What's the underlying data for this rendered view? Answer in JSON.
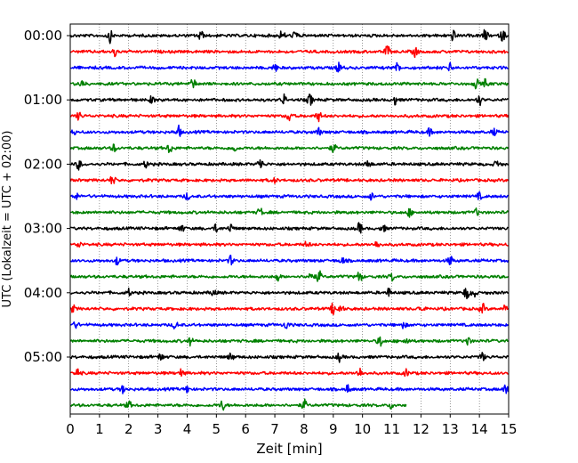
{
  "chart_data": {
    "type": "line",
    "xlabel": "Zeit  [min]",
    "ylabel": "UTC (Lokalzeit = UTC + 02:00)",
    "xlim": [
      0,
      15
    ],
    "x_ticks": [
      0,
      1,
      2,
      3,
      4,
      5,
      6,
      7,
      8,
      9,
      10,
      11,
      12,
      13,
      14,
      15
    ],
    "y_tick_labels": [
      "00:00",
      "01:00",
      "02:00",
      "03:00",
      "04:00",
      "05:00"
    ],
    "grid": "vertical dotted",
    "trace_interval_minutes": 15,
    "trace_colors_cycle": [
      "#000000",
      "#ff0000",
      "#0000ff",
      "#008000"
    ],
    "traces": [
      {
        "start": "00:00",
        "color": "#000000",
        "end_min": 15,
        "events": [
          [
            1.35,
            1.0
          ],
          [
            4.45,
            1.0
          ],
          [
            7.25,
            0.8
          ],
          [
            7.7,
            0.8
          ],
          [
            13.1,
            0.8
          ],
          [
            14.2,
            1.0
          ],
          [
            14.8,
            0.9
          ]
        ]
      },
      {
        "start": "00:15",
        "color": "#ff0000",
        "end_min": 15,
        "events": [
          [
            1.55,
            0.8
          ],
          [
            10.85,
            0.9
          ],
          [
            11.8,
            0.8
          ]
        ]
      },
      {
        "start": "00:30",
        "color": "#0000ff",
        "end_min": 15,
        "events": [
          [
            7.0,
            0.6
          ],
          [
            9.2,
            0.9
          ],
          [
            11.2,
            0.7
          ],
          [
            13.0,
            0.6
          ]
        ]
      },
      {
        "start": "00:45",
        "color": "#008000",
        "end_min": 15,
        "events": [
          [
            0.4,
            0.6
          ],
          [
            4.2,
            0.8
          ],
          [
            13.9,
            0.7
          ],
          [
            14.2,
            0.6
          ]
        ]
      },
      {
        "start": "01:00",
        "color": "#000000",
        "end_min": 15,
        "events": [
          [
            2.8,
            0.6
          ],
          [
            7.3,
            0.8
          ],
          [
            8.2,
            0.9
          ],
          [
            11.1,
            0.7
          ],
          [
            14.0,
            0.8
          ]
        ]
      },
      {
        "start": "01:15",
        "color": "#ff0000",
        "end_min": 15,
        "events": [
          [
            0.3,
            0.6
          ],
          [
            7.5,
            0.9
          ],
          [
            8.5,
            0.8
          ]
        ]
      },
      {
        "start": "01:30",
        "color": "#0000ff",
        "end_min": 15,
        "events": [
          [
            0.1,
            0.5
          ],
          [
            3.7,
            0.9
          ],
          [
            8.5,
            0.6
          ],
          [
            12.3,
            0.5
          ],
          [
            14.5,
            0.5
          ]
        ]
      },
      {
        "start": "01:45",
        "color": "#008000",
        "end_min": 15,
        "events": [
          [
            1.5,
            0.6
          ],
          [
            3.4,
            0.8
          ],
          [
            5.6,
            0.6
          ],
          [
            9.0,
            0.7
          ]
        ]
      },
      {
        "start": "02:00",
        "color": "#000000",
        "end_min": 15,
        "events": [
          [
            0.3,
            0.8
          ],
          [
            2.6,
            0.5
          ],
          [
            6.5,
            1.0
          ],
          [
            10.2,
            0.7
          ],
          [
            14.6,
            0.6
          ]
        ]
      },
      {
        "start": "02:15",
        "color": "#ff0000",
        "end_min": 15,
        "events": [
          [
            1.45,
            0.8
          ],
          [
            7.0,
            0.4
          ]
        ]
      },
      {
        "start": "02:30",
        "color": "#0000ff",
        "end_min": 15,
        "events": [
          [
            0.2,
            0.5
          ],
          [
            4.0,
            0.5
          ],
          [
            10.3,
            0.5
          ],
          [
            14.0,
            0.5
          ]
        ]
      },
      {
        "start": "02:45",
        "color": "#008000",
        "end_min": 15,
        "events": [
          [
            6.5,
            0.7
          ],
          [
            11.6,
            0.6
          ],
          [
            13.9,
            0.5
          ]
        ]
      },
      {
        "start": "03:00",
        "color": "#000000",
        "end_min": 15,
        "events": [
          [
            3.8,
            0.6
          ],
          [
            5.0,
            0.6
          ],
          [
            5.5,
            0.7
          ],
          [
            9.9,
            0.8
          ],
          [
            10.7,
            0.6
          ]
        ]
      },
      {
        "start": "03:15",
        "color": "#ff0000",
        "end_min": 15,
        "events": [
          [
            0.3,
            0.5
          ],
          [
            8.1,
            0.5
          ],
          [
            10.5,
            0.6
          ]
        ]
      },
      {
        "start": "03:30",
        "color": "#0000ff",
        "end_min": 15,
        "events": [
          [
            1.6,
            0.6
          ],
          [
            5.5,
            0.7
          ],
          [
            9.3,
            0.5
          ],
          [
            13.0,
            0.7
          ]
        ]
      },
      {
        "start": "03:45",
        "color": "#008000",
        "end_min": 15,
        "events": [
          [
            7.1,
            0.6
          ],
          [
            8.2,
            0.9
          ],
          [
            8.5,
            1.0
          ],
          [
            9.9,
            0.9
          ],
          [
            11.0,
            0.6
          ]
        ]
      },
      {
        "start": "04:00",
        "color": "#000000",
        "end_min": 15,
        "events": [
          [
            2.0,
            0.5
          ],
          [
            4.9,
            0.6
          ],
          [
            10.9,
            0.6
          ],
          [
            13.55,
            1.0
          ],
          [
            13.8,
            0.8
          ]
        ]
      },
      {
        "start": "04:15",
        "color": "#ff0000",
        "end_min": 15,
        "events": [
          [
            0.1,
            0.5
          ],
          [
            9.0,
            0.9
          ],
          [
            9.25,
            0.7
          ],
          [
            12.0,
            0.5
          ],
          [
            14.1,
            0.8
          ],
          [
            14.9,
            0.6
          ]
        ]
      },
      {
        "start": "04:30",
        "color": "#0000ff",
        "end_min": 15,
        "events": [
          [
            0.2,
            0.5
          ],
          [
            3.6,
            0.6
          ],
          [
            7.4,
            0.6
          ],
          [
            11.4,
            0.5
          ]
        ]
      },
      {
        "start": "04:45",
        "color": "#008000",
        "end_min": 15,
        "events": [
          [
            4.1,
            0.6
          ],
          [
            10.6,
            0.9
          ],
          [
            11.5,
            0.6
          ],
          [
            13.6,
            0.8
          ]
        ]
      },
      {
        "start": "05:00",
        "color": "#000000",
        "end_min": 15,
        "events": [
          [
            3.1,
            0.6
          ],
          [
            5.5,
            0.6
          ],
          [
            9.2,
            0.6
          ],
          [
            14.1,
            0.7
          ]
        ]
      },
      {
        "start": "05:15",
        "color": "#ff0000",
        "end_min": 15,
        "events": [
          [
            0.25,
            0.7
          ],
          [
            3.8,
            0.6
          ],
          [
            9.9,
            0.8
          ],
          [
            11.5,
            0.5
          ]
        ]
      },
      {
        "start": "05:30",
        "color": "#0000ff",
        "end_min": 15,
        "events": [
          [
            1.8,
            0.5
          ],
          [
            4.0,
            0.5
          ],
          [
            9.5,
            0.6
          ],
          [
            14.9,
            0.9
          ]
        ]
      },
      {
        "start": "05:45",
        "color": "#008000",
        "end_min": 11.5,
        "events": [
          [
            2.0,
            0.6
          ],
          [
            5.2,
            0.8
          ],
          [
            8.0,
            0.8
          ],
          [
            11.0,
            0.5
          ]
        ]
      }
    ]
  }
}
